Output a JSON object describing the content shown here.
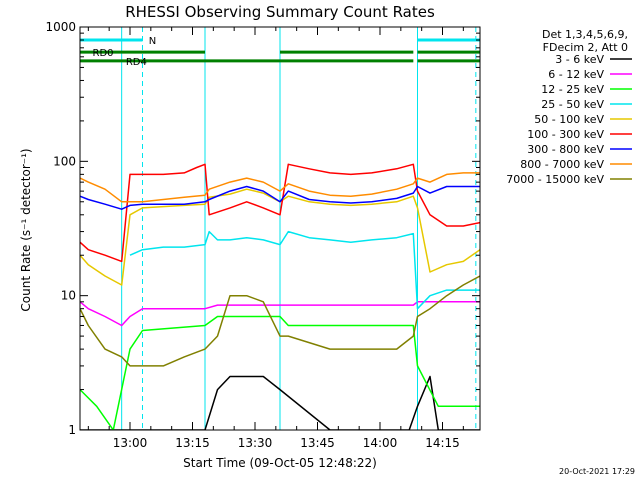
{
  "chart_data": {
    "type": "line",
    "title": "RHESSI Observing Summary Count Rates",
    "xlabel": "Start Time (09-Oct-05 12:48:22)",
    "ylabel": "Count Rate (s⁻¹ detector⁻¹)",
    "yscale": "log",
    "ylim": [
      1,
      1000
    ],
    "xlim_minutes": [
      0,
      96
    ],
    "x_tick_labels": [
      "13:00",
      "13:15",
      "13:30",
      "13:45",
      "14:00",
      "14:15"
    ],
    "x_tick_minutes": [
      12,
      27,
      42,
      57,
      72,
      87
    ],
    "y_tick_labels": [
      "1",
      "10",
      "100",
      "1000"
    ],
    "y_tick_values": [
      1,
      10,
      100,
      1000
    ],
    "grid": false,
    "legend_position": "right",
    "legend_header": [
      "Det 1,3,4,5,6,9,",
      "FDecim 2, Att 0"
    ],
    "timestamp": "20-Oct-2021 17:29",
    "annotations": {
      "n_label": "N",
      "rd0_label": "RD0",
      "rd4_label": "RD4",
      "n_color": "#00e5ee",
      "rd_color": "#008000"
    },
    "segments": [
      {
        "name": "night",
        "color": "#00e5ee",
        "intervals": [
          [
            0,
            15
          ],
          [
            81,
            96
          ]
        ],
        "level": 800
      },
      {
        "name": "RD0",
        "color": "#008000",
        "intervals": [
          [
            0,
            30
          ],
          [
            48,
            80
          ],
          [
            81,
            96
          ]
        ],
        "level": 650
      },
      {
        "name": "RD4",
        "color": "#008000",
        "intervals": [
          [
            0,
            30
          ],
          [
            30,
            48
          ],
          [
            48,
            80
          ],
          [
            81,
            96
          ]
        ],
        "level": 560
      }
    ],
    "boundaries_solid": [
      10,
      30,
      48,
      81
    ],
    "boundaries_dashed": [
      15,
      95
    ],
    "series": [
      {
        "name": "3 - 6 keV",
        "color": "#000000",
        "points": [
          [
            0,
            1
          ],
          [
            30,
            1
          ],
          [
            33,
            2
          ],
          [
            36,
            2.5
          ],
          [
            40,
            2.5
          ],
          [
            44,
            2.5
          ],
          [
            48,
            2
          ],
          [
            60,
            1
          ],
          [
            79,
            1
          ],
          [
            81,
            1.5
          ],
          [
            84,
            2.5
          ],
          [
            86,
            1
          ],
          [
            96,
            1
          ]
        ]
      },
      {
        "name": "6 - 12 keV",
        "color": "#ff00ff",
        "points": [
          [
            0,
            9
          ],
          [
            2,
            8
          ],
          [
            6,
            7
          ],
          [
            10,
            6
          ],
          [
            12,
            7
          ],
          [
            15,
            8
          ],
          [
            30,
            8
          ],
          [
            33,
            8.5
          ],
          [
            48,
            8.5
          ],
          [
            50,
            8.5
          ],
          [
            80,
            8.5
          ],
          [
            81,
            9
          ],
          [
            86,
            9
          ],
          [
            96,
            9
          ]
        ]
      },
      {
        "name": "12 - 25 keV",
        "color": "#00ff00",
        "points": [
          [
            0,
            2
          ],
          [
            4,
            1.5
          ],
          [
            8,
            1
          ],
          [
            12,
            4
          ],
          [
            15,
            5.5
          ],
          [
            30,
            6
          ],
          [
            33,
            7
          ],
          [
            48,
            7
          ],
          [
            50,
            6
          ],
          [
            80,
            6
          ],
          [
            81,
            3
          ],
          [
            86,
            1.5
          ],
          [
            96,
            1.5
          ]
        ]
      },
      {
        "name": "25 - 50 keV",
        "color": "#00e5ee",
        "points": [
          [
            12,
            20
          ],
          [
            15,
            22
          ],
          [
            20,
            23
          ],
          [
            25,
            23
          ],
          [
            30,
            24
          ],
          [
            31,
            30
          ],
          [
            33,
            26
          ],
          [
            36,
            26
          ],
          [
            40,
            27
          ],
          [
            44,
            26
          ],
          [
            48,
            24
          ],
          [
            50,
            30
          ],
          [
            55,
            27
          ],
          [
            60,
            26
          ],
          [
            65,
            25
          ],
          [
            70,
            26
          ],
          [
            76,
            27
          ],
          [
            80,
            29
          ],
          [
            81,
            8
          ],
          [
            84,
            10
          ],
          [
            88,
            11
          ],
          [
            92,
            11
          ],
          [
            96,
            11
          ]
        ]
      },
      {
        "name": "50 - 100 keV",
        "color": "#e6c800",
        "points": [
          [
            0,
            20
          ],
          [
            2,
            17
          ],
          [
            6,
            14
          ],
          [
            10,
            12
          ],
          [
            12,
            40
          ],
          [
            15,
            45
          ],
          [
            20,
            46
          ],
          [
            25,
            47
          ],
          [
            30,
            48
          ],
          [
            31,
            54
          ],
          [
            36,
            57
          ],
          [
            40,
            62
          ],
          [
            44,
            58
          ],
          [
            48,
            50
          ],
          [
            50,
            55
          ],
          [
            55,
            50
          ],
          [
            60,
            48
          ],
          [
            65,
            47
          ],
          [
            70,
            48
          ],
          [
            76,
            50
          ],
          [
            80,
            55
          ],
          [
            81,
            45
          ],
          [
            84,
            15
          ],
          [
            88,
            17
          ],
          [
            92,
            18
          ],
          [
            96,
            22
          ]
        ]
      },
      {
        "name": "100 - 300 keV",
        "color": "#ff0000",
        "points": [
          [
            0,
            25
          ],
          [
            2,
            22
          ],
          [
            6,
            20
          ],
          [
            10,
            18
          ],
          [
            12,
            80
          ],
          [
            15,
            80
          ],
          [
            20,
            80
          ],
          [
            25,
            82
          ],
          [
            28,
            90
          ],
          [
            30,
            95
          ],
          [
            31,
            40
          ],
          [
            36,
            45
          ],
          [
            40,
            50
          ],
          [
            44,
            45
          ],
          [
            48,
            40
          ],
          [
            50,
            95
          ],
          [
            55,
            88
          ],
          [
            60,
            82
          ],
          [
            65,
            80
          ],
          [
            70,
            82
          ],
          [
            76,
            88
          ],
          [
            80,
            95
          ],
          [
            81,
            60
          ],
          [
            84,
            40
          ],
          [
            88,
            33
          ],
          [
            92,
            33
          ],
          [
            96,
            35
          ]
        ]
      },
      {
        "name": "300 - 800 keV",
        "color": "#0000ff",
        "points": [
          [
            0,
            55
          ],
          [
            2,
            52
          ],
          [
            6,
            48
          ],
          [
            10,
            44
          ],
          [
            12,
            47
          ],
          [
            15,
            48
          ],
          [
            20,
            48
          ],
          [
            25,
            48
          ],
          [
            30,
            50
          ],
          [
            31,
            52
          ],
          [
            36,
            60
          ],
          [
            40,
            65
          ],
          [
            44,
            60
          ],
          [
            48,
            50
          ],
          [
            50,
            60
          ],
          [
            55,
            52
          ],
          [
            60,
            50
          ],
          [
            65,
            49
          ],
          [
            70,
            50
          ],
          [
            76,
            53
          ],
          [
            80,
            58
          ],
          [
            81,
            65
          ],
          [
            84,
            58
          ],
          [
            88,
            65
          ],
          [
            92,
            65
          ],
          [
            96,
            65
          ]
        ]
      },
      {
        "name": "800 - 7000 keV",
        "color": "#ff8c00",
        "points": [
          [
            0,
            75
          ],
          [
            2,
            70
          ],
          [
            6,
            62
          ],
          [
            10,
            50
          ],
          [
            12,
            50
          ],
          [
            15,
            50
          ],
          [
            20,
            52
          ],
          [
            25,
            54
          ],
          [
            30,
            56
          ],
          [
            31,
            62
          ],
          [
            36,
            70
          ],
          [
            40,
            75
          ],
          [
            44,
            70
          ],
          [
            48,
            60
          ],
          [
            50,
            68
          ],
          [
            55,
            60
          ],
          [
            60,
            56
          ],
          [
            65,
            55
          ],
          [
            70,
            57
          ],
          [
            76,
            62
          ],
          [
            80,
            68
          ],
          [
            81,
            75
          ],
          [
            84,
            70
          ],
          [
            88,
            80
          ],
          [
            92,
            82
          ],
          [
            96,
            82
          ]
        ]
      },
      {
        "name": "7000 - 15000 keV",
        "color": "#808000",
        "points": [
          [
            0,
            8
          ],
          [
            2,
            6
          ],
          [
            6,
            4
          ],
          [
            10,
            3.5
          ],
          [
            12,
            3
          ],
          [
            15,
            3
          ],
          [
            20,
            3
          ],
          [
            25,
            3.5
          ],
          [
            30,
            4
          ],
          [
            33,
            5
          ],
          [
            36,
            10
          ],
          [
            40,
            10
          ],
          [
            44,
            9
          ],
          [
            48,
            5
          ],
          [
            50,
            5
          ],
          [
            60,
            4
          ],
          [
            70,
            4
          ],
          [
            76,
            4
          ],
          [
            80,
            5
          ],
          [
            81,
            7
          ],
          [
            84,
            8
          ],
          [
            88,
            10
          ],
          [
            92,
            12
          ],
          [
            96,
            14
          ]
        ]
      }
    ]
  }
}
